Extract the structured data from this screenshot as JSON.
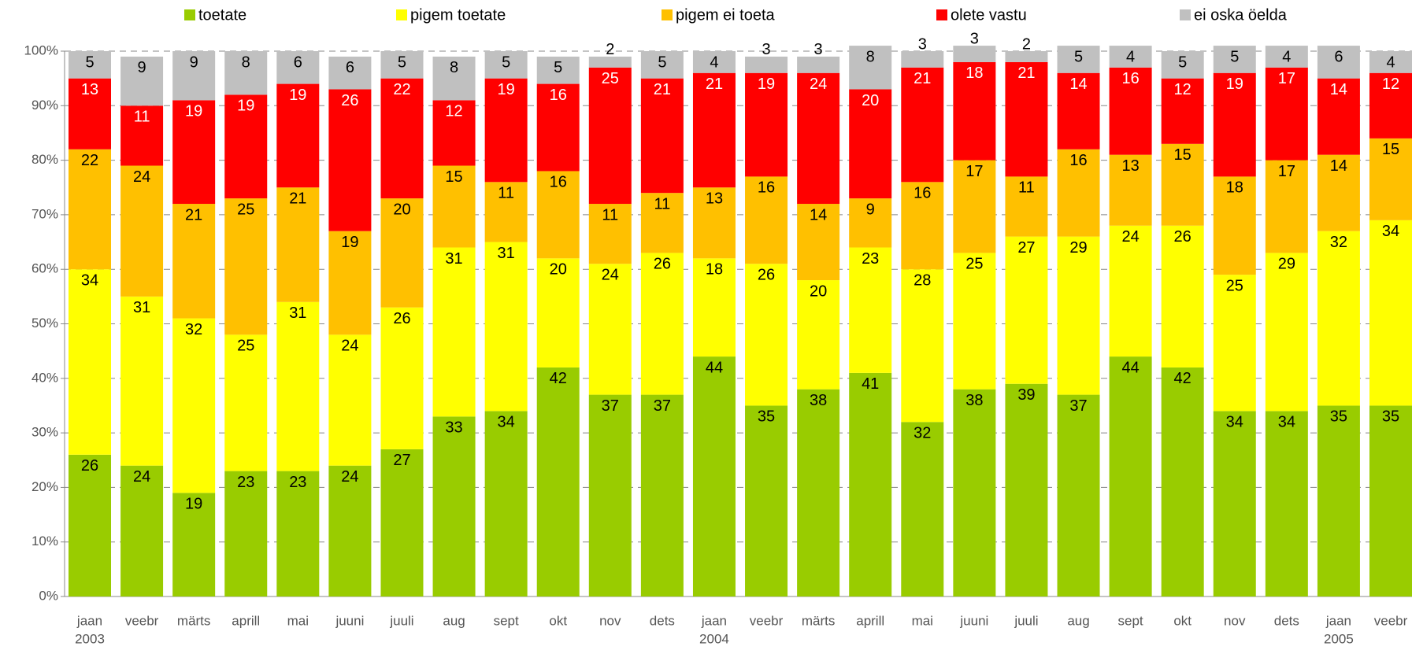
{
  "chart_data": {
    "type": "stacked_bar",
    "categories": [
      "jaan",
      "veebr",
      "märts",
      "aprill",
      "mai",
      "juuni",
      "juuli",
      "aug",
      "sept",
      "okt",
      "nov",
      "dets",
      "jaan",
      "veebr",
      "märts",
      "aprill",
      "mai",
      "juuni",
      "juuli",
      "aug",
      "sept",
      "okt",
      "nov",
      "dets",
      "jaan",
      "veebr"
    ],
    "year_labels": [
      "2003",
      null,
      null,
      null,
      null,
      null,
      null,
      null,
      null,
      null,
      null,
      null,
      "2004",
      null,
      null,
      null,
      null,
      null,
      null,
      null,
      null,
      null,
      null,
      null,
      "2005",
      null
    ],
    "series": [
      {
        "name": "toetate",
        "color": "#99cc00",
        "label_color": "#000000",
        "values": [
          26,
          24,
          19,
          23,
          23,
          24,
          27,
          33,
          34,
          42,
          37,
          37,
          44,
          35,
          38,
          41,
          32,
          38,
          39,
          37,
          44,
          42,
          34,
          34,
          35,
          35
        ]
      },
      {
        "name": "pigem toetate",
        "color": "#ffff00",
        "label_color": "#000000",
        "values": [
          34,
          31,
          32,
          25,
          31,
          24,
          26,
          31,
          31,
          20,
          24,
          26,
          18,
          26,
          20,
          23,
          28,
          25,
          27,
          29,
          24,
          26,
          25,
          29,
          32,
          34
        ]
      },
      {
        "name": "pigem ei toeta",
        "color": "#ffc000",
        "label_color": "#000000",
        "values": [
          22,
          24,
          21,
          25,
          21,
          19,
          20,
          15,
          11,
          16,
          11,
          11,
          13,
          16,
          14,
          9,
          16,
          17,
          11,
          16,
          13,
          15,
          18,
          17,
          14,
          15
        ]
      },
      {
        "name": "olete vastu",
        "color": "#ff0000",
        "label_color": "#ffffff",
        "values": [
          13,
          11,
          19,
          19,
          19,
          26,
          22,
          12,
          19,
          16,
          25,
          21,
          21,
          19,
          24,
          20,
          21,
          18,
          21,
          14,
          16,
          12,
          19,
          17,
          14,
          12
        ]
      },
      {
        "name": "ei oska öelda",
        "color": "#c0c0c0",
        "label_color": "#000000",
        "values": [
          5,
          9,
          9,
          8,
          6,
          6,
          5,
          8,
          5,
          5,
          2,
          5,
          4,
          3,
          3,
          8,
          3,
          3,
          2,
          5,
          4,
          5,
          5,
          4,
          6,
          4
        ]
      }
    ],
    "ylim": [
      0,
      100
    ],
    "yticks": [
      {
        "value": 0,
        "label": "0%"
      },
      {
        "value": 10,
        "label": "10%"
      },
      {
        "value": 20,
        "label": "20%"
      },
      {
        "value": 30,
        "label": "30%"
      },
      {
        "value": 40,
        "label": "40%"
      },
      {
        "value": 50,
        "label": "50%"
      },
      {
        "value": 60,
        "label": "60%"
      },
      {
        "value": 70,
        "label": "70%"
      },
      {
        "value": 80,
        "label": "80%"
      },
      {
        "value": 90,
        "label": "90%"
      },
      {
        "value": 100,
        "label": "100%"
      }
    ],
    "grid": true,
    "legend": "top"
  }
}
